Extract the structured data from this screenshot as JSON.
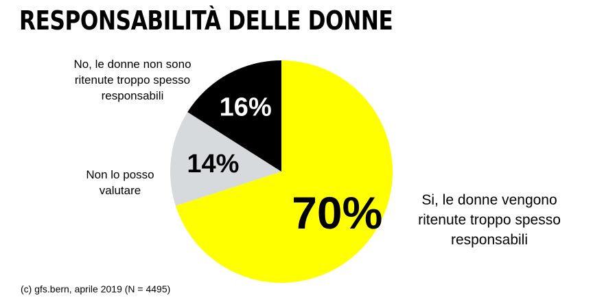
{
  "title": "RESPONSABILITÀ DELLE DONNE",
  "source": "(c) gfs.bern, aprile 2019 (N = 4495)",
  "chart_data": {
    "type": "pie",
    "title": "RESPONSABILITÀ DELLE DONNE",
    "slices": [
      {
        "label": "Si, le donne vengono ritenute troppo spesso responsabili",
        "label_lines": [
          "Si, le donne vengono",
          "ritenute troppo spesso",
          "responsabili"
        ],
        "value": 70,
        "value_label": "70%",
        "color": "#ffff00",
        "text_color": "#000000"
      },
      {
        "label": "Non lo posso valutare",
        "label_lines": [
          "Non lo posso",
          "valutare"
        ],
        "value": 14,
        "value_label": "14%",
        "color": "#d6dadc",
        "text_color": "#000000"
      },
      {
        "label": "No, le donne non sono ritenute troppo spesso responsabili",
        "label_lines": [
          "No, le donne non sono",
          "ritenute troppo spesso",
          "responsabili"
        ],
        "value": 16,
        "value_label": "16%",
        "color": "#000000",
        "text_color": "#ffffff"
      }
    ],
    "start": "12 o'clock",
    "direction": "clockwise"
  }
}
